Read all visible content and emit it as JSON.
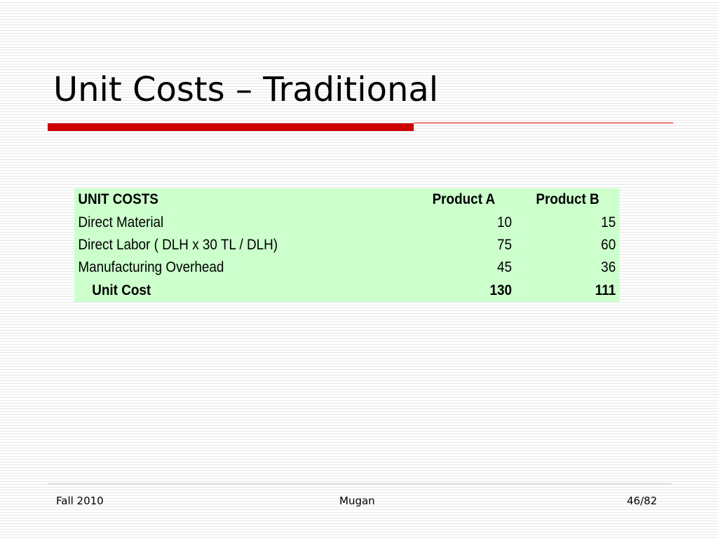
{
  "slide": {
    "title": "Unit Costs – Traditional",
    "accent_color": "#cc0000"
  },
  "table": {
    "fill_color": "#ccffcc",
    "header": {
      "label": "UNIT COSTS",
      "product_a": "Product A",
      "product_b": "Product B"
    },
    "rows": [
      {
        "label": "Direct Material",
        "product_a": "10",
        "product_b": "15"
      },
      {
        "label": "Direct Labor ( DLH x 30 TL / DLH)",
        "product_a": "75",
        "product_b": "60"
      },
      {
        "label": "Manufacturing Overhead",
        "product_a": "45",
        "product_b": "36"
      }
    ],
    "total": {
      "label": "Unit Cost",
      "product_a": "130",
      "product_b": "111"
    }
  },
  "footer": {
    "left": "Fall 2010",
    "center": "Mugan",
    "right": "46/82"
  }
}
